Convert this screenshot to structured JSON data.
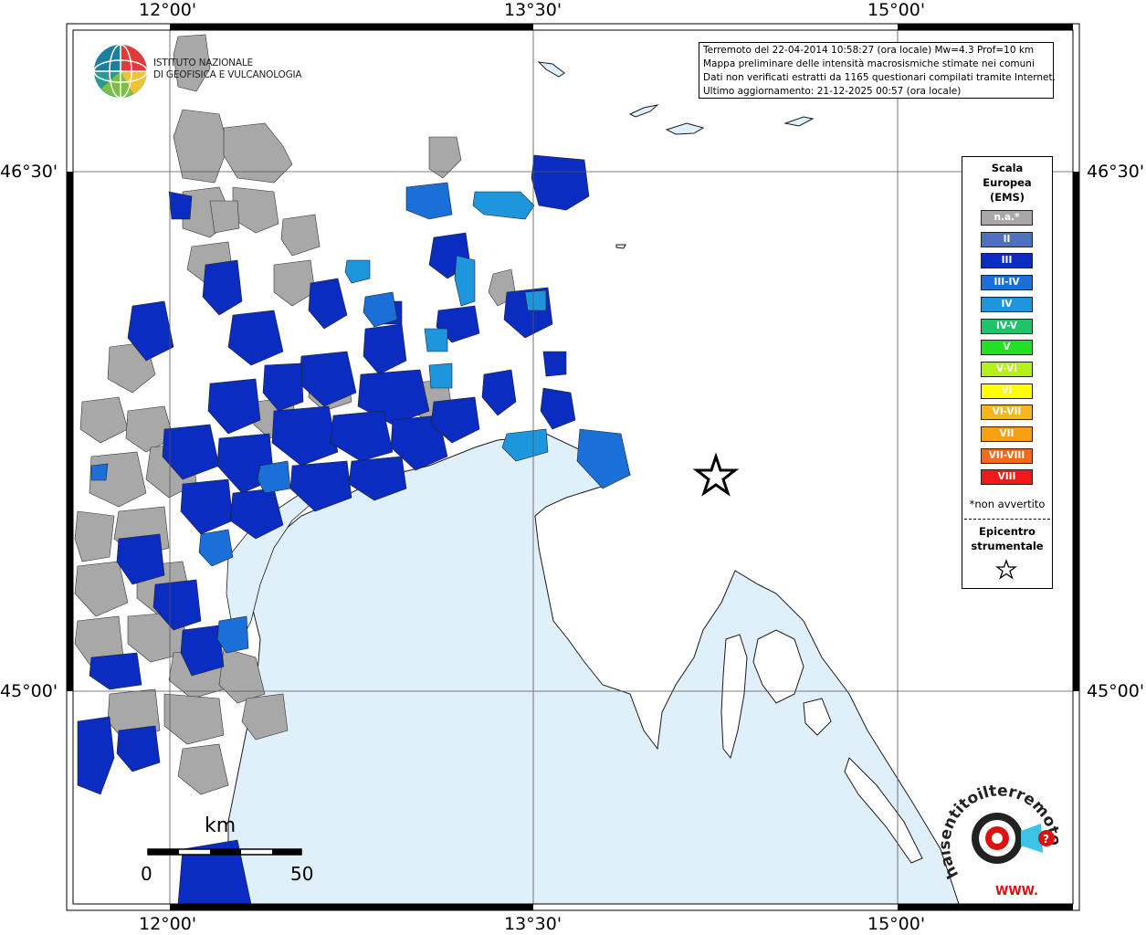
{
  "map": {
    "top_axis_labels": [
      "12°00'",
      "13°30'",
      "15°00'"
    ],
    "bottom_axis_labels": [
      "12°00'",
      "13°30'",
      "15°00'"
    ],
    "left_axis_labels": [
      "46°30'",
      "45°00'"
    ],
    "right_axis_labels": [
      "46°30'",
      "45°00'"
    ],
    "colors": {
      "sea": "#dff0fb",
      "land": "#ffffff",
      "na": "#a8a8a8",
      "ii": "#4f6fbf",
      "iii": "#0a2cc0",
      "iii_iv": "#1a6fd8",
      "iv": "#1e96de"
    }
  },
  "info_box": {
    "line1": "Terremoto del 22-04-2014 10:58:27 (ora locale) Mw=4.3 Prof=10 km",
    "line2": "Mappa preliminare delle intensità macrosismiche stimate nei comuni",
    "line3": "Dati non verificati estratti da 1165 questionari compilati tramite Internet.",
    "line4": "Ultimo aggiornamento: 21-12-2025 00:57 (ora locale)"
  },
  "logo": {
    "line1": "ISTITUTO NAZIONALE",
    "line2": "DI GEOFISICA E VULCANOLOGIA"
  },
  "legend": {
    "title_line1": "Scala",
    "title_line2": "Europea",
    "title_line3": "(EMS)",
    "items": [
      {
        "label": "n.a.*",
        "color": "#a8a8a8"
      },
      {
        "label": "II",
        "color": "#4f6fbf"
      },
      {
        "label": "III",
        "color": "#0a2cc0"
      },
      {
        "label": "III-IV",
        "color": "#1a6fd8"
      },
      {
        "label": "IV",
        "color": "#1e96de"
      },
      {
        "label": "IV-V",
        "color": "#1fc46a"
      },
      {
        "label": "V",
        "color": "#22e022"
      },
      {
        "label": "V-VI",
        "color": "#b6f01c"
      },
      {
        "label": "VI",
        "color": "#ffff00"
      },
      {
        "label": "VI-VII",
        "color": "#f4b81e"
      },
      {
        "label": "VII",
        "color": "#f8a014"
      },
      {
        "label": "VII-VIII",
        "color": "#f86818"
      },
      {
        "label": "VIII",
        "color": "#f41818"
      }
    ],
    "note": "*non avvertito",
    "epicenter_line1": "Epicentro",
    "epicenter_line2": "strumentale"
  },
  "scale_bar": {
    "unit": "km",
    "start": "0",
    "end": "50"
  },
  "branding": {
    "site": "haisentitoilterremoto.it",
    "www": "WWW."
  }
}
